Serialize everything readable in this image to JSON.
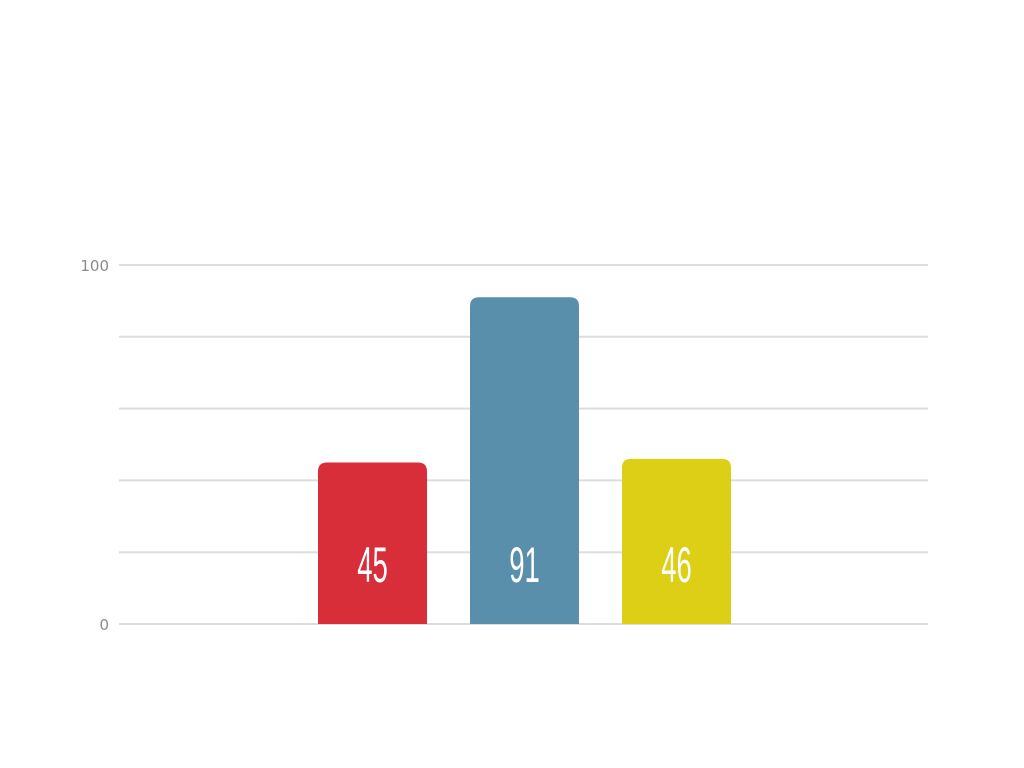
{
  "chart_data": {
    "type": "bar",
    "title": "",
    "xlabel": "",
    "ylabel": "",
    "categories": [
      "",
      "",
      ""
    ],
    "values": [
      45,
      91,
      46
    ],
    "data_labels": [
      "45",
      "91",
      "46"
    ],
    "bar_colors": [
      "#d72e3a",
      "#5a8fab",
      "#dccf15"
    ],
    "ylim": [
      0,
      100
    ],
    "y_ticks": [
      0,
      20,
      40,
      60,
      80,
      100
    ],
    "y_tick_labels": [
      "0",
      "",
      "",
      "",
      "",
      "100"
    ],
    "grid": true,
    "gridline_color": "#dddddd",
    "legend": "none"
  }
}
